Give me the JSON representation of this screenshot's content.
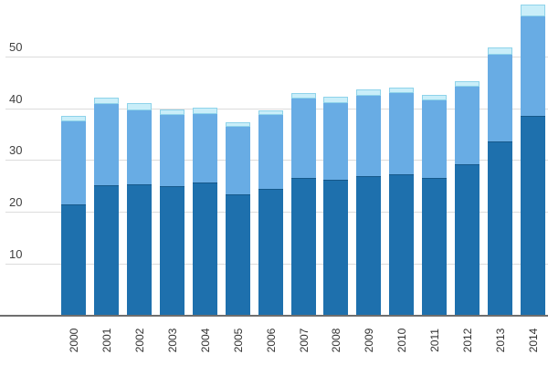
{
  "chart_data": {
    "type": "bar",
    "stacked": true,
    "title": "",
    "xlabel": "",
    "ylabel": "",
    "legend": "none",
    "categories": [
      "2000",
      "2001",
      "2002",
      "2003",
      "2004",
      "2005",
      "2006",
      "2007",
      "2008",
      "2009",
      "2010",
      "2011",
      "2012",
      "2013",
      "2014"
    ],
    "series": [
      {
        "name": "bottom-dark-blue-segment",
        "color": "#1e70ad",
        "border_color": "#15588a",
        "values": [
          21.2,
          25.0,
          25.1,
          24.8,
          25.5,
          23.3,
          24.3,
          26.3,
          26.0,
          26.7,
          27.1,
          26.4,
          29.0,
          33.4,
          38.4
        ]
      },
      {
        "name": "middle-medium-blue-segment",
        "color": "#68ace4",
        "border_color": "#5fa3dd",
        "values": [
          16.0,
          15.6,
          14.3,
          13.7,
          13.2,
          12.9,
          14.2,
          15.3,
          14.8,
          15.5,
          15.6,
          14.9,
          15.0,
          16.7,
          19.1
        ]
      },
      {
        "name": "top-light-cyan-segment",
        "color": "#c9eef9",
        "border_color": "#8ed3ea",
        "values": [
          1.2,
          1.2,
          1.4,
          1.1,
          1.2,
          0.9,
          0.9,
          1.2,
          1.3,
          1.2,
          1.1,
          1.1,
          1.0,
          1.5,
          2.3
        ]
      }
    ],
    "totals": [
      38.4,
      41.8,
      40.8,
      39.6,
      39.9,
      37.1,
      39.4,
      42.8,
      42.1,
      43.4,
      43.8,
      42.4,
      45.0,
      51.6,
      59.8
    ],
    "y_axis": {
      "tick_labels": [
        "10",
        "20",
        "30",
        "40",
        "50"
      ],
      "tick_values": [
        10,
        20,
        30,
        40,
        50
      ],
      "ylim": [
        0,
        60
      ],
      "grid": true
    },
    "x_axis": {
      "tick_labels": [
        "2000",
        "2001",
        "2002",
        "2003",
        "2004",
        "2005",
        "2006",
        "2007",
        "2008",
        "2009",
        "2010",
        "2011",
        "2012",
        "2013",
        "2014"
      ],
      "label_rotation_deg": -90
    },
    "colors": {
      "background": "#ffffff",
      "gridline": "#dcdcdc",
      "axis_line": "#6e6e6e",
      "y_tick_text": "#404040",
      "x_tick_text": "#333333"
    }
  }
}
